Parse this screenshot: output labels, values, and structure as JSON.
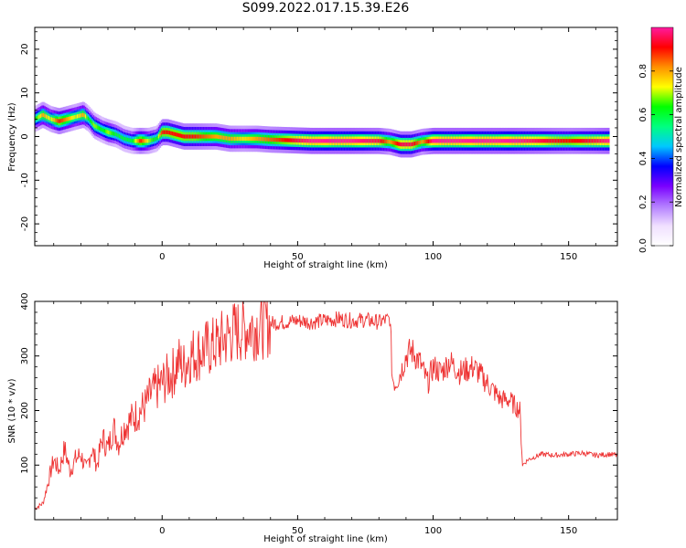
{
  "title": "S099.2022.017.15.39.E26",
  "chart_data": [
    {
      "type": "heatmap",
      "xlabel": "Height of straight line (km)",
      "ylabel": "Frequency (Hz)",
      "xlim": [
        -47,
        168
      ],
      "ylim": [
        -25,
        25
      ],
      "xticks": [
        0,
        50,
        100,
        150
      ],
      "yticks": [
        -20,
        -10,
        0,
        10,
        20
      ],
      "colorbar": {
        "label": "Normalized spectral amplitude",
        "range": [
          0,
          1
        ],
        "ticks": [
          "0.0",
          "0.2",
          "0.4",
          "0.6",
          "0.8"
        ],
        "colormap": [
          "#ffffff",
          "#f0e0ff",
          "#b27cff",
          "#7a00ff",
          "#0000ff",
          "#00c8ff",
          "#00ff80",
          "#00ff00",
          "#ffff00",
          "#ff9000",
          "#ff0000",
          "#ff1aa0"
        ]
      },
      "ridge": {
        "x": [
          -47,
          -44,
          -41,
          -38,
          -35,
          -32,
          -29,
          -27,
          -25,
          -22,
          -20,
          -17,
          -14,
          -11,
          -8,
          -5,
          -2,
          0,
          2,
          5,
          8,
          12,
          16,
          20,
          25,
          30,
          35,
          40,
          45,
          50,
          55,
          60,
          70,
          80,
          84,
          88,
          92,
          96,
          100,
          110,
          120,
          130,
          140,
          150,
          160,
          165
        ],
        "freq": [
          4.0,
          5.0,
          4.0,
          3.5,
          4.0,
          4.5,
          5.0,
          4.0,
          2.5,
          1.5,
          1.0,
          0.5,
          -0.5,
          -1.0,
          -1.0,
          -1.0,
          -0.5,
          1.0,
          1.0,
          0.5,
          0.0,
          0.0,
          0.0,
          0.0,
          -0.5,
          -0.5,
          -0.5,
          -0.7,
          -0.8,
          -0.9,
          -1.0,
          -1.0,
          -1.0,
          -1.0,
          -1.2,
          -1.8,
          -1.8,
          -1.2,
          -1.0,
          -1.0,
          -1.0,
          -1.0,
          -1.0,
          -1.0,
          -1.0,
          -1.0
        ],
        "amplitude": [
          0.6,
          0.8,
          0.7,
          0.9,
          0.8,
          0.7,
          0.8,
          0.6,
          0.7,
          0.6,
          0.7,
          0.6,
          0.6,
          0.6,
          0.9,
          0.7,
          0.6,
          0.9,
          0.9,
          0.9,
          0.9,
          0.9,
          0.85,
          0.8,
          0.8,
          0.75,
          0.8,
          0.85,
          0.9,
          0.95,
          1.0,
          1.0,
          1.0,
          0.95,
          0.8,
          0.95,
          0.95,
          0.8,
          1.0,
          1.0,
          1.0,
          1.0,
          0.95,
          0.9,
          0.95,
          1.0
        ]
      }
    },
    {
      "type": "line",
      "xlabel": "Height of straight line (km)",
      "ylabel": "SNR (10 * v/v)",
      "xlim": [
        -47,
        168
      ],
      "ylim": [
        0,
        400
      ],
      "xticks": [
        0,
        50,
        100,
        150
      ],
      "yticks": [
        100,
        200,
        300,
        400
      ],
      "color": "#ee3333",
      "series": [
        {
          "x": [
            -47,
            -44,
            -42,
            -40,
            -38,
            -36,
            -34,
            -32,
            -30,
            -28,
            -26,
            -24,
            -22,
            -20,
            -18,
            -16,
            -14,
            -12,
            -10,
            -8,
            -6,
            -4,
            -2,
            0,
            2,
            4,
            6,
            8,
            10,
            15,
            20,
            25,
            30,
            35,
            40,
            45,
            50,
            55,
            60,
            65,
            70,
            75,
            80,
            84,
            85,
            86,
            88,
            90,
            92,
            95,
            98,
            100,
            103,
            106,
            110,
            115,
            120,
            125,
            128,
            130,
            132,
            133,
            135,
            140,
            145,
            150,
            155,
            160,
            165,
            168
          ],
          "values": [
            20,
            30,
            70,
            110,
            90,
            130,
            90,
            110,
            120,
            90,
            130,
            100,
            150,
            130,
            170,
            140,
            170,
            180,
            190,
            200,
            210,
            230,
            240,
            250,
            260,
            270,
            290,
            280,
            300,
            310,
            320,
            340,
            350,
            355,
            360,
            362,
            365,
            362,
            365,
            368,
            365,
            366,
            362,
            368,
            260,
            250,
            270,
            300,
            310,
            290,
            250,
            280,
            270,
            290,
            270,
            280,
            250,
            220,
            220,
            210,
            200,
            100,
            110,
            120,
            118,
            120,
            122,
            118,
            120,
            118
          ]
        }
      ]
    }
  ]
}
